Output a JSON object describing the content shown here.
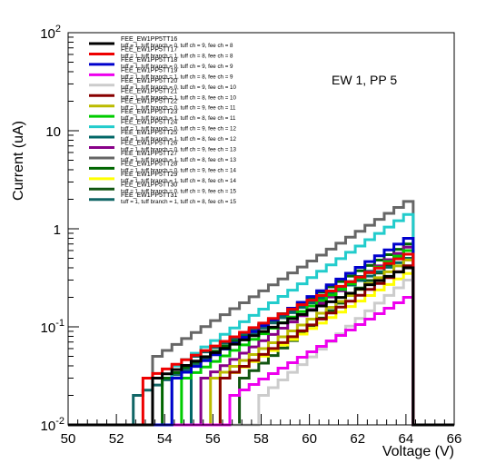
{
  "chart_data": {
    "type": "line",
    "title": "",
    "annotation": "EW 1, PP 5",
    "xlabel": "Voltage (V)",
    "ylabel": "Current (uA)",
    "xlim": [
      50,
      66
    ],
    "ylim": [
      0.01,
      100
    ],
    "yscale": "log",
    "grid": false,
    "legend_position": "top-left",
    "x_tick_labels": [
      "50",
      "52",
      "54",
      "56",
      "58",
      "60",
      "62",
      "64",
      "66"
    ],
    "y_tick_labels": [
      {
        "base": "10",
        "exp": "-2",
        "value": 0.01
      },
      {
        "base": "10",
        "exp": "-1",
        "value": 0.1
      },
      {
        "base": "1",
        "exp": "",
        "value": 1
      },
      {
        "base": "10",
        "exp": "",
        "value": 10
      },
      {
        "base": "10",
        "exp": "2",
        "value": 100
      }
    ],
    "bin_edges": [
      52.7,
      53.1,
      53.5,
      53.9,
      54.3,
      54.7,
      55.1,
      55.5,
      55.9,
      56.3,
      56.7,
      57.1,
      57.5,
      57.9,
      58.3,
      58.7,
      59.1,
      59.5,
      59.9,
      60.3,
      60.7,
      61.1,
      61.5,
      61.9,
      62.3,
      62.7,
      63.1,
      63.5,
      63.9,
      64.3
    ],
    "underflow_value": 0.01,
    "series": [
      {
        "name": "FEE_EW1PP5TT16",
        "desc": "tuff = 1, tuff branch = 0, tuff ch = 9, fee ch = 8",
        "color": "#000000",
        "start": 53.5,
        "v_start": 0.03,
        "v_end": 0.4
      },
      {
        "name": "FEE_EW1PP5TT17",
        "desc": "tuff = 1, tuff branch = 1, tuff ch = 8, fee ch = 8",
        "color": "#ee0000",
        "start": 53.1,
        "v_start": 0.03,
        "v_end": 0.55
      },
      {
        "name": "FEE_EW1PP5TT18",
        "desc": "tuff = 1, tuff branch = 0, tuff ch = 9, fee ch = 9",
        "color": "#0000cc",
        "start": 54.3,
        "v_start": 0.03,
        "v_end": 0.8
      },
      {
        "name": "FEE_EW1PP5TT19",
        "desc": "tuff = 1, tuff branch = 1, tuff ch = 8, fee ch = 9",
        "color": "#ee00ee",
        "start": 56.7,
        "v_start": 0.02,
        "v_end": 0.2
      },
      {
        "name": "FEE_EW1PP5TT20",
        "desc": "tuff = 1, tuff branch = 0, tuff ch = 9, fee ch = 10",
        "color": "#cccccc",
        "start": 57.9,
        "v_start": 0.02,
        "v_end": 0.3
      },
      {
        "name": "FEE_EW1PP5TT21",
        "desc": "tuff = 1, tuff branch = 1, tuff ch = 8, fee ch = 10",
        "color": "#880000",
        "start": 56.3,
        "v_start": 0.03,
        "v_end": 0.42
      },
      {
        "name": "FEE_EW1PP5TT22",
        "desc": "tuff = 1, tuff branch = 0, tuff ch = 9, fee ch = 11",
        "color": "#bbbb00",
        "start": 55.9,
        "v_start": 0.03,
        "v_end": 0.48
      },
      {
        "name": "FEE_EW1PP5TT23",
        "desc": "tuff = 1, tuff branch = 1, tuff ch = 8, fee ch = 11",
        "color": "#00cc00",
        "start": 54.7,
        "v_start": 0.03,
        "v_end": 0.6
      },
      {
        "name": "FEE_EW1PP5TT24",
        "desc": "tuff = 1, tuff branch = 0, tuff ch = 9, fee ch = 12",
        "color": "#22cccc",
        "start": 54.3,
        "v_start": 0.04,
        "v_end": 1.4
      },
      {
        "name": "FEE_EW1PP5TT25",
        "desc": "tuff = 1, tuff branch = 1, tuff ch = 8, fee ch = 12",
        "color": "#006666",
        "start": 55.1,
        "v_start": 0.05,
        "v_end": 0.5
      },
      {
        "name": "FEE_EW1PP5TT26",
        "desc": "tuff = 1, tuff branch = 0, tuff ch = 9, fee ch = 13",
        "color": "#880088",
        "start": 55.5,
        "v_start": 0.03,
        "v_end": 0.65
      },
      {
        "name": "FEE_EW1PP5TT27",
        "desc": "tuff = 1, tuff branch = 1, tuff ch = 8, fee ch = 13",
        "color": "#666666",
        "start": 53.5,
        "v_start": 0.05,
        "v_end": 1.9
      },
      {
        "name": "FEE_EW1PP5TT28",
        "desc": "tuff = 1, tuff branch = 0, tuff ch = 9, fee ch = 14",
        "color": "#006600",
        "start": 53.9,
        "v_start": 0.03,
        "v_end": 0.7
      },
      {
        "name": "FEE_EW1PP5TT29",
        "desc": "tuff = 1, tuff branch = 1, tuff ch = 8, fee ch = 14",
        "color": "#ffff00",
        "start": 56.3,
        "v_start": 0.03,
        "v_end": 0.35
      },
      {
        "name": "FEE_EW1PP5TT30",
        "desc": "tuff = 1, tuff branch = 0, tuff ch = 9, fee ch = 15",
        "color": "#115511",
        "start": 57.1,
        "v_start": 0.03,
        "v_end": 0.6
      },
      {
        "name": "FEE_EW1PP5TT31",
        "desc": "tuff = 1, tuff branch = 1, tuff ch = 8, fee ch = 15",
        "color": "#116666",
        "start": 52.7,
        "v_start": 0.02,
        "v_end": 0.6
      }
    ]
  }
}
